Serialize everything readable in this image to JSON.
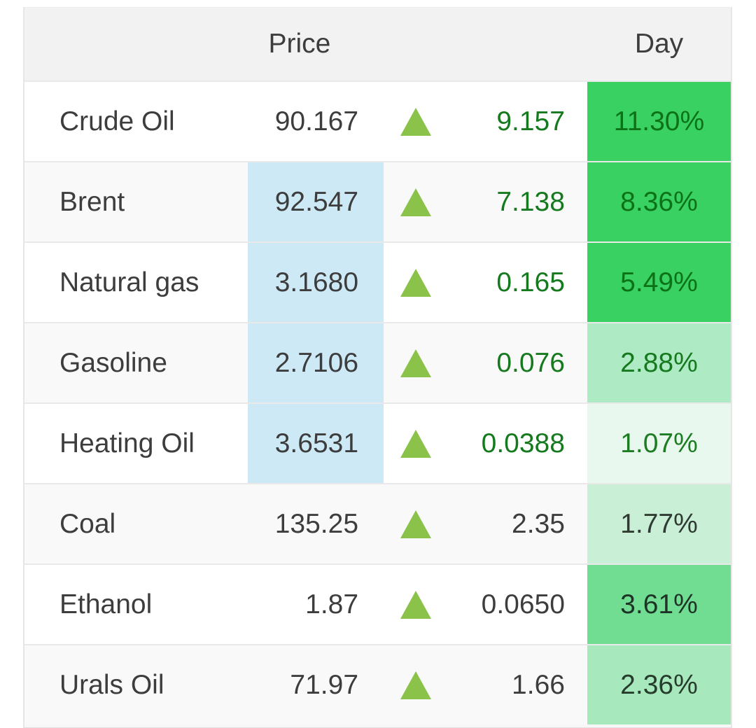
{
  "table": {
    "headers": {
      "instrument": "",
      "price": "Price",
      "day": "Day"
    },
    "colors": {
      "header_bg": "#f2f2f2",
      "row_border": "#e9e9e9",
      "alt_row_bg": "#f9f9f9",
      "price_highlight_bg": "#cde9f6",
      "triangle_green": "#8ac24a",
      "strong_day_green": "#38d162",
      "green_text": "#15791e",
      "dark_text": "#3d3d3d"
    },
    "rows": [
      {
        "name": "Crude Oil",
        "price": "90.167",
        "change": "9.157",
        "day_pct": "11.30%",
        "direction": "up",
        "row_bg": "#ffffff",
        "price_highlight": false,
        "change_color": "#15791e",
        "day_bg": "#38d162",
        "day_color": "#0d7217"
      },
      {
        "name": "Brent",
        "price": "92.547",
        "change": "7.138",
        "day_pct": "8.36%",
        "direction": "up",
        "row_bg": "#f9f9f9",
        "price_highlight": true,
        "change_color": "#15791e",
        "day_bg": "#38d162",
        "day_color": "#0d7217"
      },
      {
        "name": "Natural gas",
        "price": "3.1680",
        "change": "0.165",
        "day_pct": "5.49%",
        "direction": "up",
        "row_bg": "#ffffff",
        "price_highlight": true,
        "change_color": "#15791e",
        "day_bg": "#38d162",
        "day_color": "#0d7217"
      },
      {
        "name": "Gasoline",
        "price": "2.7106",
        "change": "0.076",
        "day_pct": "2.88%",
        "direction": "up",
        "row_bg": "#f9f9f9",
        "price_highlight": true,
        "change_color": "#15791e",
        "day_bg": "#aeeac3",
        "day_color": "#15791e"
      },
      {
        "name": "Heating Oil",
        "price": "3.6531",
        "change": "0.0388",
        "day_pct": "1.07%",
        "direction": "up",
        "row_bg": "#ffffff",
        "price_highlight": true,
        "change_color": "#15791e",
        "day_bg": "#e9f8ef",
        "day_color": "#1b7c22"
      },
      {
        "name": "Coal",
        "price": "135.25",
        "change": "2.35",
        "day_pct": "1.77%",
        "direction": "up",
        "row_bg": "#f9f9f9",
        "price_highlight": false,
        "change_color": "#3d3d3d",
        "day_bg": "#c9f0d7",
        "day_color": "#2f3b32"
      },
      {
        "name": "Ethanol",
        "price": "1.87",
        "change": "0.0650",
        "day_pct": "3.61%",
        "direction": "up",
        "row_bg": "#ffffff",
        "price_highlight": false,
        "change_color": "#3d3d3d",
        "day_bg": "#70dd93",
        "day_color": "#1e3326"
      },
      {
        "name": "Urals Oil",
        "price": "71.97",
        "change": "1.66",
        "day_pct": "2.36%",
        "direction": "up",
        "row_bg": "#f9f9f9",
        "price_highlight": false,
        "change_color": "#3d3d3d",
        "day_bg": "#a7e8bd",
        "day_color": "#263c2c"
      }
    ]
  }
}
